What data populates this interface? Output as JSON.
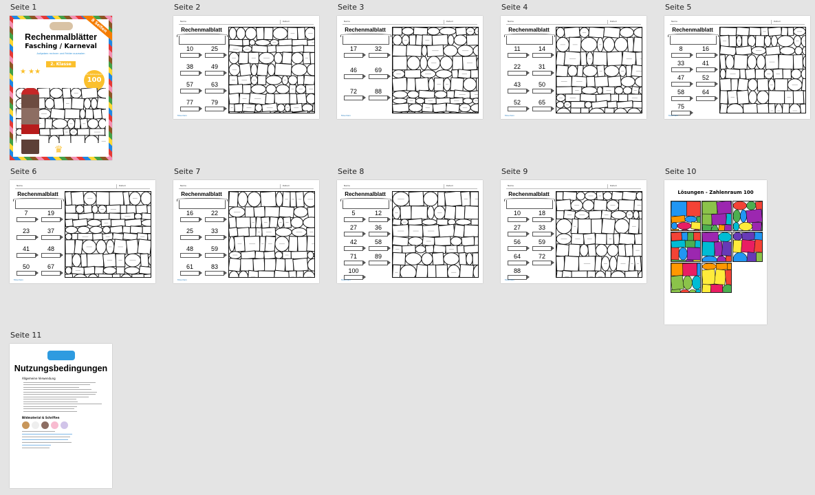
{
  "pages": [
    {
      "label": "Seite 1",
      "kind": "cover",
      "cover": {
        "badge": "8 Seiten",
        "title": "Rechenmalblätter",
        "subtitle": "Fasching / Karneval",
        "tagline": "Aufgaben rechnen und Felder ausmalen",
        "grade": "2. Klasse",
        "range_label": "Im Zahlenraum",
        "range_value": "100"
      }
    },
    {
      "label": "Seite 2",
      "kind": "sheet",
      "numbers": [
        "10",
        "25",
        "38",
        "49",
        "57",
        "63",
        "77",
        "79"
      ]
    },
    {
      "label": "Seite 3",
      "kind": "sheet",
      "numbers": [
        "17",
        "32",
        "46",
        "69",
        "72",
        "88"
      ]
    },
    {
      "label": "Seite 4",
      "kind": "sheet",
      "numbers": [
        "11",
        "14",
        "22",
        "31",
        "43",
        "50",
        "52",
        "65"
      ]
    },
    {
      "label": "Seite 5",
      "kind": "sheet",
      "numbers": [
        "8",
        "16",
        "33",
        "41",
        "47",
        "52",
        "58",
        "64",
        "75"
      ]
    },
    {
      "label": "Seite 6",
      "kind": "sheet",
      "numbers": [
        "7",
        "19",
        "23",
        "37",
        "41",
        "48",
        "50",
        "67"
      ]
    },
    {
      "label": "Seite 7",
      "kind": "sheet",
      "numbers": [
        "16",
        "22",
        "25",
        "33",
        "48",
        "59",
        "61",
        "83"
      ]
    },
    {
      "label": "Seite 8",
      "kind": "sheet",
      "numbers": [
        "5",
        "12",
        "27",
        "36",
        "42",
        "58",
        "71",
        "89",
        "100"
      ]
    },
    {
      "label": "Seite 9",
      "kind": "sheet",
      "numbers": [
        "10",
        "18",
        "27",
        "33",
        "56",
        "59",
        "64",
        "72",
        "88"
      ]
    },
    {
      "label": "Seite 10",
      "kind": "solutions",
      "title": "Lösungen - Zahlenraum 100"
    },
    {
      "label": "Seite 11",
      "kind": "terms",
      "title": "Nutzungsbedingungen",
      "section": "Allgemeine Verwendung",
      "credits": "Bildmaterial & Schriften"
    }
  ],
  "sheet": {
    "title": "Rechenmalblatt",
    "name_label": "Name",
    "date_label": "Datum",
    "footer": "Mountain"
  },
  "colors": {
    "background": "#e4e4e4",
    "solution_palette": [
      "#e91e63",
      "#2196f3",
      "#ffeb3b",
      "#4caf50",
      "#9c27b0",
      "#ff9800",
      "#00bcd4",
      "#f44336",
      "#8bc34a",
      "#673ab7"
    ]
  }
}
